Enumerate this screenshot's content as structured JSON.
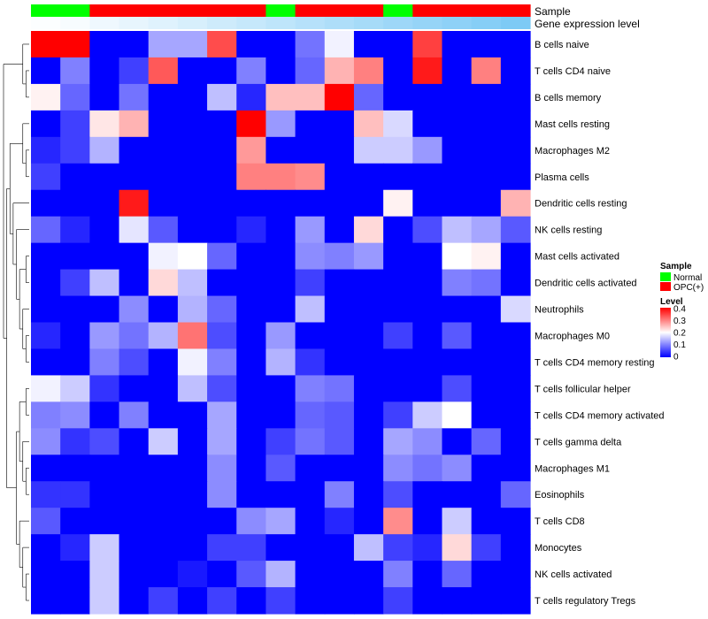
{
  "chart_data": {
    "type": "heatmap",
    "colors": {
      "low": "#0000FF",
      "mid": "#FFFFFF",
      "high": "#FF0000"
    },
    "scale": {
      "min": 0,
      "mid": 0.2,
      "max": 0.4
    },
    "annotation_tracks": {
      "sample": {
        "label": "Sample",
        "values": [
          "Normal",
          "Normal",
          "OPC(+)",
          "OPC(+)",
          "OPC(+)",
          "OPC(+)",
          "OPC(+)",
          "OPC(+)",
          "Normal",
          "OPC(+)",
          "OPC(+)",
          "OPC(+)",
          "Normal",
          "OPC(+)",
          "OPC(+)",
          "OPC(+)",
          "OPC(+)"
        ]
      },
      "expression": {
        "label": "Gene expression level",
        "values": [
          0.02,
          0.06,
          0.12,
          0.18,
          0.24,
          0.3,
          0.36,
          0.42,
          0.48,
          0.54,
          0.6,
          0.66,
          0.72,
          0.78,
          0.84,
          0.9,
          0.96
        ]
      }
    },
    "rows": [
      "B cells naive",
      "T cells CD4 naive",
      "B cells memory",
      "Mast cells resting",
      "Macrophages M2",
      "Plasma cells",
      "Dendritic cells resting",
      "NK cells resting",
      "Mast cells activated",
      "Dendritic cells activated",
      "Neutrophils",
      "Macrophages M0",
      "T cells CD4 memory resting",
      "T cells follicular helper",
      "T cells CD4 memory activated",
      "T cells gamma delta",
      "Macrophages M1",
      "Eosinophils",
      "T cells CD8",
      "Monocytes",
      "NK cells activated",
      "T cells regulatory  Tregs"
    ],
    "values": [
      [
        0.4,
        0.4,
        0.0,
        0.0,
        0.13,
        0.13,
        0.34,
        0.0,
        0.0,
        0.09,
        0.19,
        0.0,
        0.0,
        0.35,
        0.0,
        0.0,
        0.0
      ],
      [
        0.0,
        0.1,
        0.0,
        0.05,
        0.33,
        0.0,
        0.0,
        0.1,
        0.0,
        0.08,
        0.26,
        0.3,
        0.0,
        0.38,
        0.0,
        0.3,
        0.0
      ],
      [
        0.21,
        0.08,
        0.0,
        0.09,
        0.0,
        0.0,
        0.15,
        0.03,
        0.25,
        0.25,
        0.4,
        0.08,
        0.0,
        0.0,
        0.0,
        0.0,
        0.0
      ],
      [
        0.0,
        0.05,
        0.22,
        0.26,
        0.0,
        0.0,
        0.0,
        0.4,
        0.12,
        0.0,
        0.0,
        0.25,
        0.17,
        0.0,
        0.0,
        0.0,
        0.0
      ],
      [
        0.03,
        0.05,
        0.14,
        0.0,
        0.0,
        0.0,
        0.0,
        0.28,
        0.0,
        0.0,
        0.0,
        0.16,
        0.16,
        0.12,
        0.0,
        0.0,
        0.0
      ],
      [
        0.05,
        0.0,
        0.0,
        0.0,
        0.0,
        0.0,
        0.0,
        0.3,
        0.3,
        0.29,
        0.0,
        0.0,
        0.0,
        0.0,
        0.0,
        0.0,
        0.0
      ],
      [
        0.0,
        0.0,
        0.0,
        0.38,
        0.0,
        0.0,
        0.0,
        0.0,
        0.0,
        0.0,
        0.0,
        0.0,
        0.21,
        0.0,
        0.0,
        0.0,
        0.26
      ],
      [
        0.08,
        0.03,
        0.0,
        0.18,
        0.07,
        0.0,
        0.0,
        0.03,
        0.0,
        0.12,
        0.0,
        0.23,
        0.0,
        0.06,
        0.15,
        0.13,
        0.07
      ],
      [
        0.0,
        0.0,
        0.0,
        0.0,
        0.19,
        0.2,
        0.08,
        0.0,
        0.0,
        0.11,
        0.1,
        0.12,
        0.0,
        0.0,
        0.2,
        0.21,
        0.0
      ],
      [
        0.0,
        0.05,
        0.15,
        0.0,
        0.23,
        0.15,
        0.0,
        0.0,
        0.0,
        0.05,
        0.0,
        0.0,
        0.0,
        0.0,
        0.1,
        0.09,
        0.0
      ],
      [
        0.0,
        0.0,
        0.0,
        0.11,
        0.0,
        0.14,
        0.08,
        0.0,
        0.0,
        0.15,
        0.0,
        0.0,
        0.0,
        0.0,
        0.0,
        0.0,
        0.17
      ],
      [
        0.03,
        0.0,
        0.12,
        0.09,
        0.14,
        0.31,
        0.06,
        0.0,
        0.12,
        0.0,
        0.0,
        0.0,
        0.05,
        0.0,
        0.07,
        0.0,
        0.0
      ],
      [
        0.0,
        0.0,
        0.1,
        0.06,
        0.0,
        0.19,
        0.1,
        0.0,
        0.14,
        0.04,
        0.0,
        0.0,
        0.0,
        0.0,
        0.0,
        0.0,
        0.0
      ],
      [
        0.19,
        0.16,
        0.04,
        0.0,
        0.0,
        0.15,
        0.06,
        0.0,
        0.0,
        0.1,
        0.09,
        0.0,
        0.0,
        0.0,
        0.06,
        0.0,
        0.0
      ],
      [
        0.1,
        0.11,
        0.0,
        0.1,
        0.0,
        0.0,
        0.13,
        0.0,
        0.0,
        0.08,
        0.07,
        0.0,
        0.05,
        0.16,
        0.2,
        0.0,
        0.0
      ],
      [
        0.11,
        0.04,
        0.06,
        0.0,
        0.16,
        0.0,
        0.13,
        0.0,
        0.05,
        0.09,
        0.07,
        0.0,
        0.13,
        0.11,
        0.0,
        0.08,
        0.0
      ],
      [
        0.0,
        0.0,
        0.0,
        0.0,
        0.0,
        0.0,
        0.11,
        0.0,
        0.07,
        0.0,
        0.0,
        0.0,
        0.11,
        0.09,
        0.11,
        0.0,
        0.0
      ],
      [
        0.04,
        0.04,
        0.0,
        0.0,
        0.0,
        0.0,
        0.11,
        0.0,
        0.0,
        0.0,
        0.1,
        0.0,
        0.06,
        0.0,
        0.0,
        0.0,
        0.08
      ],
      [
        0.07,
        0.0,
        0.0,
        0.0,
        0.0,
        0.0,
        0.0,
        0.11,
        0.13,
        0.0,
        0.03,
        0.0,
        0.29,
        0.0,
        0.16,
        0.0,
        0.0
      ],
      [
        0.0,
        0.03,
        0.16,
        0.0,
        0.0,
        0.0,
        0.05,
        0.05,
        0.0,
        0.0,
        0.0,
        0.15,
        0.05,
        0.03,
        0.23,
        0.05,
        0.0
      ],
      [
        0.0,
        0.0,
        0.16,
        0.0,
        0.0,
        0.02,
        0.0,
        0.07,
        0.14,
        0.0,
        0.0,
        0.0,
        0.1,
        0.0,
        0.08,
        0.0,
        0.0
      ],
      [
        0.0,
        0.0,
        0.16,
        0.0,
        0.05,
        0.0,
        0.05,
        0.0,
        0.05,
        0.0,
        0.0,
        0.0,
        0.05,
        0.0,
        0.0,
        0.0,
        0.0
      ]
    ],
    "legend": {
      "sample": {
        "title": "Sample",
        "items": [
          {
            "label": "Normal",
            "color": "#00FF00"
          },
          {
            "label": "OPC(+)",
            "color": "#FF0000"
          }
        ]
      },
      "level": {
        "title": "Level",
        "ticks": [
          "0.4",
          "0.3",
          "0.2",
          "0.1",
          "0"
        ]
      }
    },
    "legend_position": "right",
    "dendrogram": "rows-left"
  }
}
